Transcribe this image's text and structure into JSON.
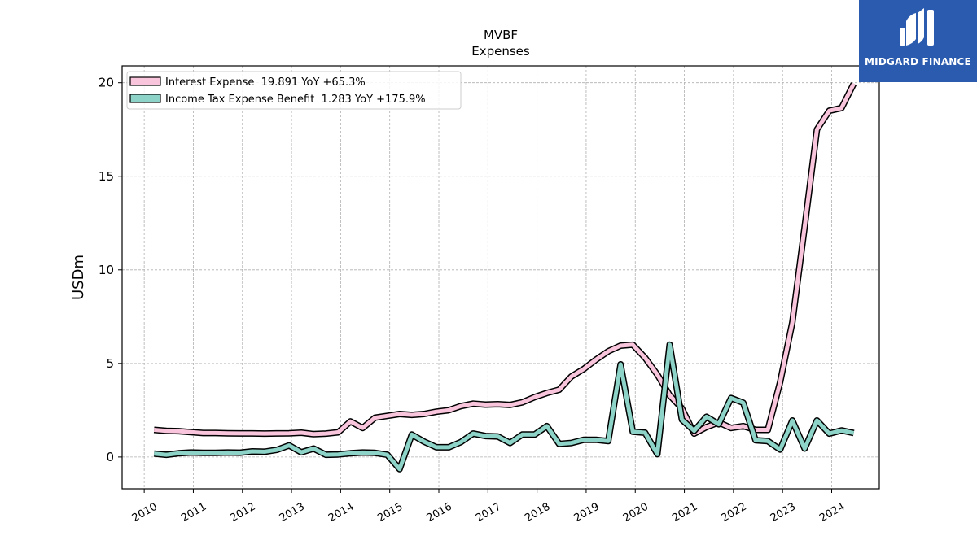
{
  "chart_data": {
    "type": "line",
    "title": "MVBF",
    "subtitle": "Expenses",
    "ylabel": "USDm",
    "xlabel": "",
    "xlim": [
      2009.55,
      2024.97
    ],
    "ylim": [
      -1.7,
      20.9
    ],
    "yticks": [
      0,
      5,
      10,
      15,
      20
    ],
    "xticks": [
      "2010",
      "2011",
      "2012",
      "2013",
      "2014",
      "2015",
      "2016",
      "2017",
      "2018",
      "2019",
      "2020",
      "2021",
      "2022",
      "2023",
      "2024"
    ],
    "grid": true,
    "legend_position": "top-left",
    "series": [
      {
        "name": "Interest Expense  19.891 YoY +65.3%",
        "color": "#f9c5dc",
        "points": [
          [
            2010.2,
            1.45
          ],
          [
            2010.45,
            1.4
          ],
          [
            2010.7,
            1.38
          ],
          [
            2010.95,
            1.33
          ],
          [
            2011.2,
            1.28
          ],
          [
            2011.45,
            1.28
          ],
          [
            2011.7,
            1.27
          ],
          [
            2011.95,
            1.26
          ],
          [
            2012.2,
            1.26
          ],
          [
            2012.45,
            1.25
          ],
          [
            2012.7,
            1.26
          ],
          [
            2012.95,
            1.27
          ],
          [
            2013.2,
            1.3
          ],
          [
            2013.45,
            1.22
          ],
          [
            2013.7,
            1.25
          ],
          [
            2013.95,
            1.32
          ],
          [
            2014.2,
            1.9
          ],
          [
            2014.45,
            1.55
          ],
          [
            2014.7,
            2.1
          ],
          [
            2014.95,
            2.2
          ],
          [
            2015.2,
            2.3
          ],
          [
            2015.45,
            2.25
          ],
          [
            2015.7,
            2.3
          ],
          [
            2015.95,
            2.42
          ],
          [
            2016.2,
            2.5
          ],
          [
            2016.45,
            2.72
          ],
          [
            2016.7,
            2.85
          ],
          [
            2016.95,
            2.8
          ],
          [
            2017.2,
            2.82
          ],
          [
            2017.45,
            2.78
          ],
          [
            2017.7,
            2.92
          ],
          [
            2017.95,
            3.2
          ],
          [
            2018.2,
            3.42
          ],
          [
            2018.45,
            3.6
          ],
          [
            2018.7,
            4.3
          ],
          [
            2018.95,
            4.7
          ],
          [
            2019.2,
            5.2
          ],
          [
            2019.45,
            5.65
          ],
          [
            2019.7,
            5.95
          ],
          [
            2019.95,
            6.0
          ],
          [
            2020.2,
            5.3
          ],
          [
            2020.45,
            4.4
          ],
          [
            2020.7,
            3.3
          ],
          [
            2020.95,
            2.6
          ],
          [
            2021.2,
            1.25
          ],
          [
            2021.45,
            1.6
          ],
          [
            2021.7,
            1.85
          ],
          [
            2021.95,
            1.55
          ],
          [
            2022.2,
            1.65
          ],
          [
            2022.45,
            1.45
          ],
          [
            2022.7,
            1.45
          ],
          [
            2022.95,
            4.0
          ],
          [
            2023.2,
            7.2
          ],
          [
            2023.45,
            12.3
          ],
          [
            2023.7,
            17.5
          ],
          [
            2023.95,
            18.5
          ],
          [
            2024.2,
            18.65
          ],
          [
            2024.45,
            19.95
          ]
        ]
      },
      {
        "name": "Income Tax Expense Benefit  1.283 YoY +175.9%",
        "color": "#8dd3c7",
        "points": [
          [
            2010.2,
            0.18
          ],
          [
            2010.45,
            0.12
          ],
          [
            2010.7,
            0.2
          ],
          [
            2010.95,
            0.24
          ],
          [
            2011.2,
            0.22
          ],
          [
            2011.45,
            0.22
          ],
          [
            2011.7,
            0.24
          ],
          [
            2011.95,
            0.23
          ],
          [
            2012.2,
            0.3
          ],
          [
            2012.45,
            0.28
          ],
          [
            2012.7,
            0.38
          ],
          [
            2012.95,
            0.62
          ],
          [
            2013.2,
            0.25
          ],
          [
            2013.45,
            0.45
          ],
          [
            2013.7,
            0.12
          ],
          [
            2013.95,
            0.14
          ],
          [
            2014.2,
            0.2
          ],
          [
            2014.45,
            0.24
          ],
          [
            2014.7,
            0.22
          ],
          [
            2014.95,
            0.12
          ],
          [
            2015.2,
            -0.65
          ],
          [
            2015.45,
            1.2
          ],
          [
            2015.7,
            0.82
          ],
          [
            2015.95,
            0.52
          ],
          [
            2016.2,
            0.52
          ],
          [
            2016.45,
            0.8
          ],
          [
            2016.7,
            1.25
          ],
          [
            2016.95,
            1.12
          ],
          [
            2017.2,
            1.1
          ],
          [
            2017.45,
            0.75
          ],
          [
            2017.7,
            1.2
          ],
          [
            2017.95,
            1.2
          ],
          [
            2018.2,
            1.65
          ],
          [
            2018.45,
            0.7
          ],
          [
            2018.7,
            0.75
          ],
          [
            2018.95,
            0.92
          ],
          [
            2019.2,
            0.92
          ],
          [
            2019.45,
            0.85
          ],
          [
            2019.7,
            4.95
          ],
          [
            2019.95,
            1.35
          ],
          [
            2020.2,
            1.3
          ],
          [
            2020.45,
            0.15
          ],
          [
            2020.7,
            6.0
          ],
          [
            2020.95,
            2.0
          ],
          [
            2021.2,
            1.4
          ],
          [
            2021.45,
            2.15
          ],
          [
            2021.7,
            1.75
          ],
          [
            2021.95,
            3.15
          ],
          [
            2022.2,
            2.9
          ],
          [
            2022.45,
            0.9
          ],
          [
            2022.7,
            0.85
          ],
          [
            2022.95,
            0.4
          ],
          [
            2023.2,
            1.95
          ],
          [
            2023.45,
            0.45
          ],
          [
            2023.7,
            1.95
          ],
          [
            2023.95,
            1.25
          ],
          [
            2024.2,
            1.42
          ],
          [
            2024.45,
            1.28
          ]
        ]
      }
    ]
  },
  "logo": {
    "text": "MIDGARD FINANCE",
    "color": "#2b5bae"
  }
}
